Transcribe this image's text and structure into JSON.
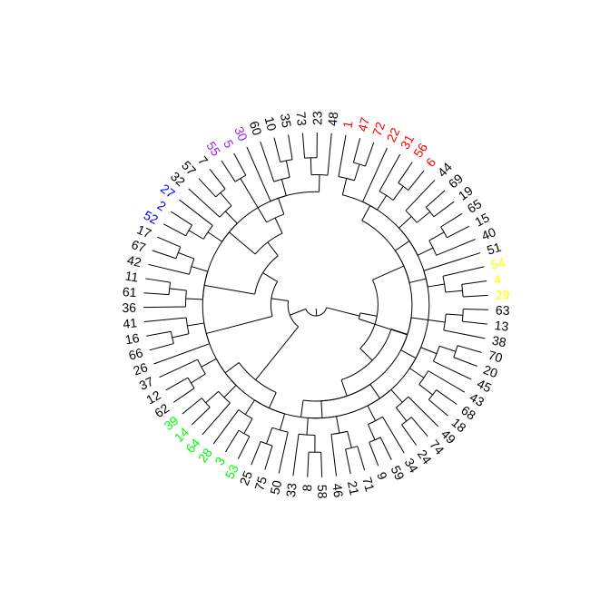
{
  "dendrogram": {
    "layout": "circular (fan)",
    "background_color": "#ffffff",
    "branch_color": "#000000",
    "label_colors": {
      "black": "#000000",
      "red": "#ff0000",
      "purple": "#a020f0",
      "blue": "#0000ff",
      "green": "#00ff00",
      "yellow": "#ffff00"
    },
    "tips": [
      {
        "label": "1",
        "color": "red"
      },
      {
        "label": "47",
        "color": "red"
      },
      {
        "label": "72",
        "color": "red"
      },
      {
        "label": "22",
        "color": "red"
      },
      {
        "label": "31",
        "color": "red"
      },
      {
        "label": "56",
        "color": "red"
      },
      {
        "label": "6",
        "color": "red"
      },
      {
        "label": "44",
        "color": "black"
      },
      {
        "label": "69",
        "color": "black"
      },
      {
        "label": "19",
        "color": "black"
      },
      {
        "label": "65",
        "color": "black"
      },
      {
        "label": "15",
        "color": "black"
      },
      {
        "label": "40",
        "color": "black"
      },
      {
        "label": "51",
        "color": "black"
      },
      {
        "label": "54",
        "color": "yellow"
      },
      {
        "label": "4",
        "color": "yellow"
      },
      {
        "label": "29",
        "color": "yellow"
      },
      {
        "label": "63",
        "color": "black"
      },
      {
        "label": "13",
        "color": "black"
      },
      {
        "label": "38",
        "color": "black"
      },
      {
        "label": "70",
        "color": "black"
      },
      {
        "label": "20",
        "color": "black"
      },
      {
        "label": "45",
        "color": "black"
      },
      {
        "label": "43",
        "color": "black"
      },
      {
        "label": "68",
        "color": "black"
      },
      {
        "label": "18",
        "color": "black"
      },
      {
        "label": "49",
        "color": "black"
      },
      {
        "label": "74",
        "color": "black"
      },
      {
        "label": "24",
        "color": "black"
      },
      {
        "label": "34",
        "color": "black"
      },
      {
        "label": "59",
        "color": "black"
      },
      {
        "label": "9",
        "color": "black"
      },
      {
        "label": "71",
        "color": "black"
      },
      {
        "label": "21",
        "color": "black"
      },
      {
        "label": "46",
        "color": "black"
      },
      {
        "label": "58",
        "color": "black"
      },
      {
        "label": "8",
        "color": "black"
      },
      {
        "label": "33",
        "color": "black"
      },
      {
        "label": "50",
        "color": "black"
      },
      {
        "label": "75",
        "color": "black"
      },
      {
        "label": "25",
        "color": "black"
      },
      {
        "label": "53",
        "color": "green"
      },
      {
        "label": "3",
        "color": "green"
      },
      {
        "label": "28",
        "color": "green"
      },
      {
        "label": "64",
        "color": "green"
      },
      {
        "label": "14",
        "color": "green"
      },
      {
        "label": "39",
        "color": "green"
      },
      {
        "label": "62",
        "color": "black"
      },
      {
        "label": "12",
        "color": "black"
      },
      {
        "label": "37",
        "color": "black"
      },
      {
        "label": "26",
        "color": "black"
      },
      {
        "label": "66",
        "color": "black"
      },
      {
        "label": "16",
        "color": "black"
      },
      {
        "label": "41",
        "color": "black"
      },
      {
        "label": "36",
        "color": "black"
      },
      {
        "label": "61",
        "color": "black"
      },
      {
        "label": "11",
        "color": "black"
      },
      {
        "label": "42",
        "color": "black"
      },
      {
        "label": "67",
        "color": "black"
      },
      {
        "label": "17",
        "color": "black"
      },
      {
        "label": "52",
        "color": "blue"
      },
      {
        "label": "2",
        "color": "blue"
      },
      {
        "label": "27",
        "color": "blue"
      },
      {
        "label": "32",
        "color": "black"
      },
      {
        "label": "57",
        "color": "black"
      },
      {
        "label": "7",
        "color": "black"
      },
      {
        "label": "55",
        "color": "purple"
      },
      {
        "label": "5",
        "color": "purple"
      },
      {
        "label": "30",
        "color": "purple"
      },
      {
        "label": "60",
        "color": "black"
      },
      {
        "label": "10",
        "color": "black"
      },
      {
        "label": "35",
        "color": "black"
      },
      {
        "label": "73",
        "color": "black"
      },
      {
        "label": "23",
        "color": "black"
      },
      {
        "label": "48",
        "color": "black"
      }
    ],
    "tree": [
      [
        [
          [
            [
              [
                "73",
                "23"
              ],
              "48"
            ],
            [
              "1",
              [
                "47",
                "72"
              ]
            ]
          ],
          [
            "22",
            [
              "31",
              [
                "56",
                "6"
              ]
            ]
          ]
        ],
        [
          [
            [
              [
                "44",
                [
                  "69",
                  "19"
                ]
              ],
              [
                [
                  "65",
                  "15"
                ],
                "40"
              ]
            ],
            [
              "51",
              [
                "54",
                [
                  "4",
                  "29"
                ]
              ]
            ]
          ],
          [
            [
              [
                [
                  "63",
                  "13"
                ],
                "38"
              ],
              [
                [
                  [
                    "70",
                    "20"
                  ],
                  "45"
                ],
                [
                  "43",
                  [
                    "68",
                    "18"
                  ]
                ]
              ]
            ],
            [
              [
                [
                  "49",
                  [
                    "74",
                    "24"
                  ]
                ],
                [
                  "34",
                  [
                    "59",
                    "9"
                  ]
                ]
              ],
              [
                [
                  [
                    "71",
                    "21"
                  ],
                  "46"
                ],
                [
                  [
                    "58",
                    "8"
                  ],
                  "33"
                ]
              ]
            ]
          ]
        ]
      ],
      [
        [
          [
            [
              "50",
              [
                "75",
                "25"
              ]
            ],
            [
              [
                "53",
                "3"
              ],
              "28"
            ]
          ],
          [
            [
              "64",
              [
                "14",
                "39"
              ]
            ],
            [
              [
                "62",
                "12"
              ],
              "37"
            ]
          ]
        ],
        [
          [
            "26",
            [
              [
                "66",
                "16"
              ],
              "41"
            ]
          ],
          [
            [
              [
                "36",
                [
                  "61",
                  "11"
                ]
              ],
              [
                "42",
                [
                  "67",
                  "17"
                ]
              ]
            ],
            [
              [
                [
                  [
                    "52",
                    "2"
                  ],
                  "27"
                ],
                [
                  "32",
                  [
                    "57",
                    "7"
                  ]
                ]
              ],
              [
                [
                  "55",
                  "5"
                ],
                [
                  "30",
                  [
                    "60",
                    [
                      "10",
                      "35"
                    ]
                  ]
                ]
              ]
            ]
          ]
        ]
      ]
    ]
  }
}
